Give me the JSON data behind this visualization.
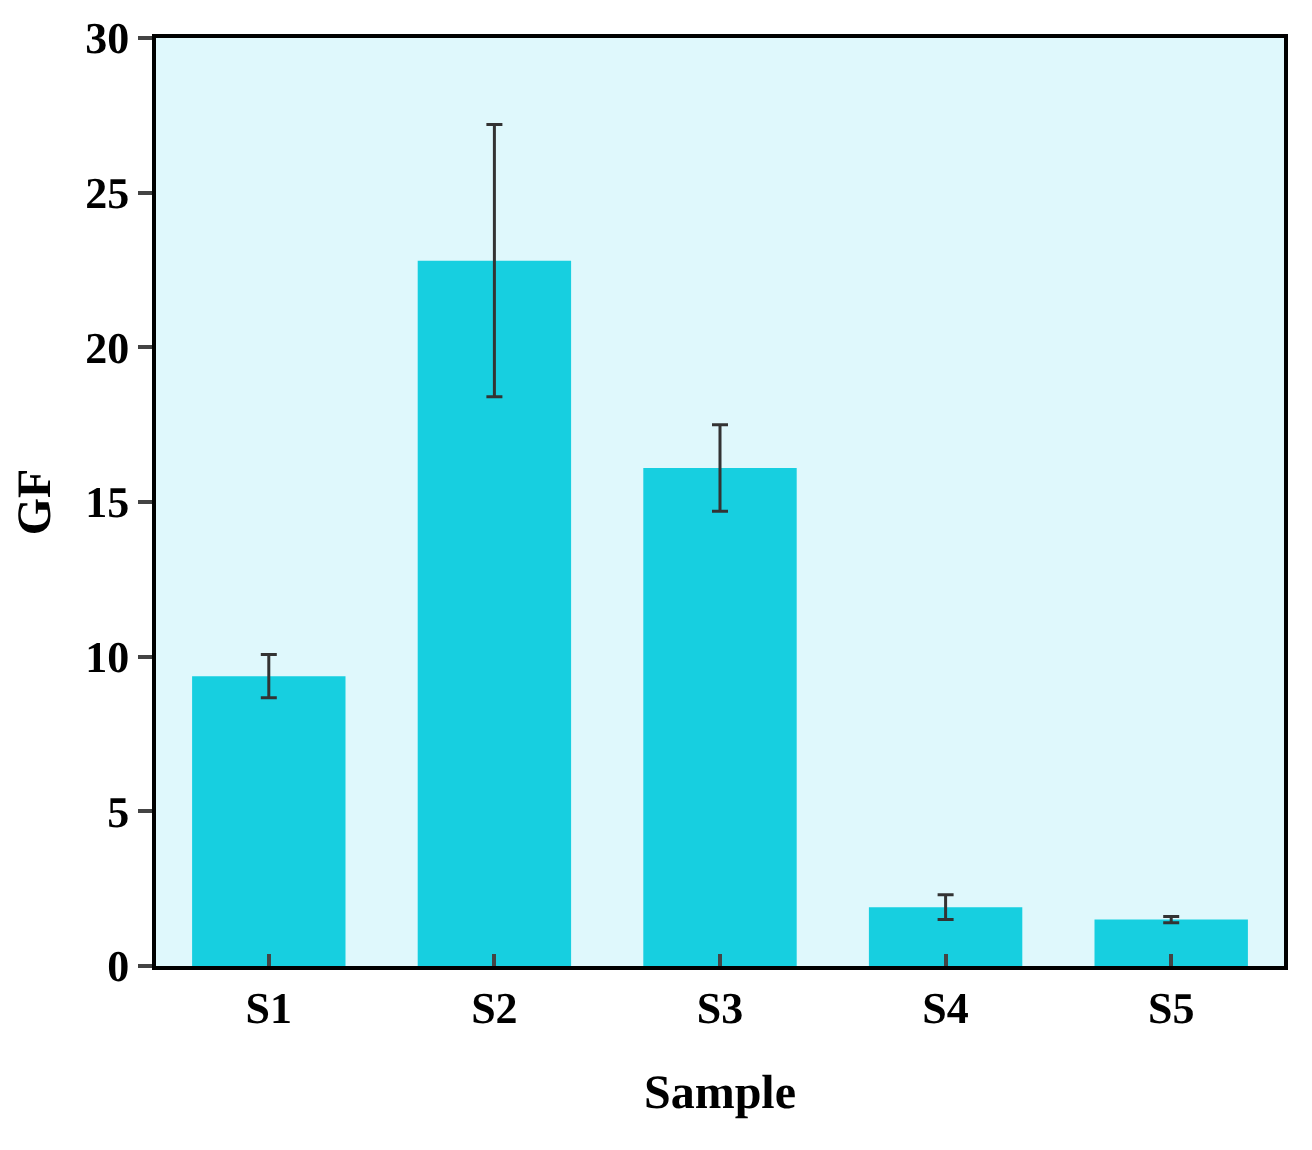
{
  "chart_data": {
    "type": "bar",
    "xlabel": "Sample",
    "ylabel": "GF",
    "categories": [
      "S1",
      "S2",
      "S3",
      "S4",
      "S5"
    ],
    "values": [
      9.37,
      22.8,
      16.1,
      1.9,
      1.5
    ],
    "errors": [
      0.7,
      4.4,
      1.4,
      0.4,
      0.1
    ],
    "color": "#17cfe0",
    "ylim": [
      0,
      30
    ],
    "yticks": [
      0,
      5,
      10,
      15,
      20,
      25,
      30
    ],
    "grid": false
  }
}
